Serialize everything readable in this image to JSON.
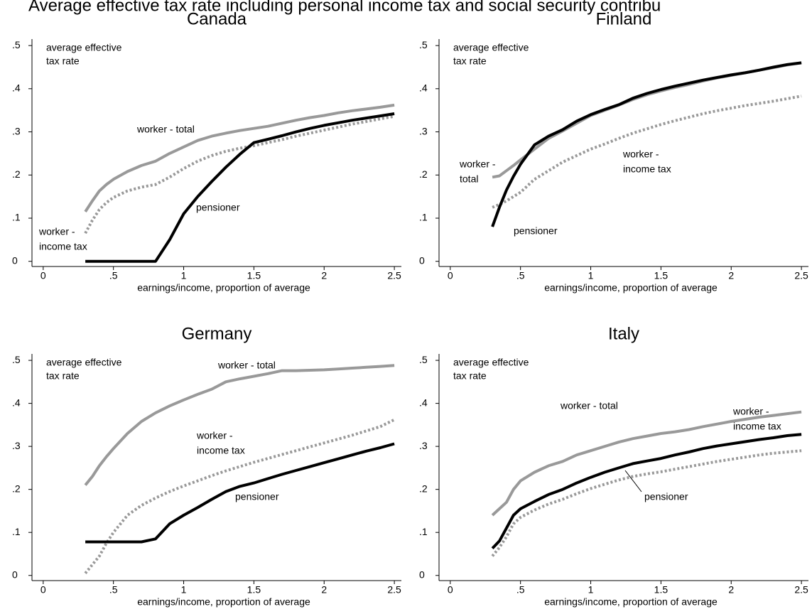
{
  "title": "Average effective tax rate including personal income tax and social security contribu",
  "chart_data": [
    {
      "type": "line",
      "title": "Canada",
      "x_label": "earnings/income, proportion of average",
      "y_label": [
        "average effective",
        "tax rate"
      ],
      "x": [
        0.3,
        0.35,
        0.4,
        0.45,
        0.5,
        0.6,
        0.7,
        0.8,
        0.9,
        1.0,
        1.1,
        1.2,
        1.3,
        1.4,
        1.5,
        1.6,
        1.7,
        1.8,
        1.9,
        2.0,
        2.1,
        2.2,
        2.3,
        2.4,
        2.5
      ],
      "xlim": [
        -0.08,
        2.55
      ],
      "ylim": [
        -0.012,
        0.515
      ],
      "xticks": [
        0,
        {
          "value": 0.5,
          "label": ".5"
        },
        1,
        {
          "value": 1.5,
          "label": "1.5"
        },
        2,
        {
          "value": 2.5,
          "label": "2.5"
        }
      ],
      "yticks": [
        0,
        {
          "value": 0.1,
          "label": ".1"
        },
        {
          "value": 0.2,
          "label": ".2"
        },
        {
          "value": 0.3,
          "label": ".3"
        },
        {
          "value": 0.4,
          "label": ".4"
        },
        {
          "value": 0.5,
          "label": ".5"
        }
      ],
      "series": [
        {
          "name": [
            "worker - total"
          ],
          "color": "#999999",
          "style": "solid",
          "values": [
            0.115,
            0.14,
            0.163,
            0.178,
            0.19,
            0.208,
            0.222,
            0.232,
            0.25,
            0.265,
            0.28,
            0.29,
            0.297,
            0.303,
            0.308,
            0.313,
            0.32,
            0.327,
            0.333,
            0.338,
            0.344,
            0.349,
            0.353,
            0.357,
            0.362
          ]
        },
        {
          "name": [
            "worker -",
            "income tax"
          ],
          "color": "#999999",
          "style": "dotted",
          "values": [
            0.065,
            0.095,
            0.12,
            0.136,
            0.148,
            0.163,
            0.172,
            0.178,
            0.195,
            0.215,
            0.232,
            0.245,
            0.255,
            0.262,
            0.268,
            0.275,
            0.282,
            0.29,
            0.297,
            0.304,
            0.311,
            0.318,
            0.324,
            0.33,
            0.336
          ]
        },
        {
          "name": [
            "pensioner"
          ],
          "color": "#000000",
          "style": "solid",
          "values": [
            0,
            0,
            0,
            0,
            0,
            0,
            0,
            0,
            0.05,
            0.11,
            0.15,
            0.185,
            0.218,
            0.248,
            0.275,
            0.283,
            0.291,
            0.3,
            0.308,
            0.315,
            0.321,
            0.327,
            0.332,
            0.337,
            0.342
          ]
        }
      ]
    },
    {
      "type": "line",
      "title": "Finland",
      "x_label": "earnings/income, proportion of average",
      "y_label": [
        "average effective",
        "tax rate"
      ],
      "x": [
        0.3,
        0.35,
        0.4,
        0.45,
        0.5,
        0.6,
        0.7,
        0.8,
        0.9,
        1.0,
        1.1,
        1.2,
        1.3,
        1.4,
        1.5,
        1.6,
        1.7,
        1.8,
        1.9,
        2.0,
        2.1,
        2.2,
        2.3,
        2.4,
        2.5
      ],
      "xlim": [
        -0.08,
        2.55
      ],
      "ylim": [
        -0.012,
        0.515
      ],
      "xticks": [
        0,
        {
          "value": 0.5,
          "label": ".5"
        },
        1,
        {
          "value": 1.5,
          "label": "1.5"
        },
        2,
        {
          "value": 2.5,
          "label": "2.5"
        }
      ],
      "yticks": [
        0,
        {
          "value": 0.1,
          "label": ".1"
        },
        {
          "value": 0.2,
          "label": ".2"
        },
        {
          "value": 0.3,
          "label": ".3"
        },
        {
          "value": 0.4,
          "label": ".4"
        },
        {
          "value": 0.5,
          "label": ".5"
        }
      ],
      "series": [
        {
          "name": [
            "worker -",
            "total"
          ],
          "color": "#999999",
          "style": "solid",
          "values": [
            0.195,
            0.198,
            0.21,
            0.222,
            0.235,
            0.26,
            0.285,
            0.302,
            0.32,
            0.338,
            0.35,
            0.362,
            0.375,
            0.386,
            0.395,
            0.403,
            0.41,
            0.418,
            0.425,
            0.431,
            0.437,
            0.443,
            0.449,
            0.455,
            0.46
          ]
        },
        {
          "name": [
            "worker -",
            "income tax"
          ],
          "color": "#999999",
          "style": "dotted",
          "values": [
            0.125,
            0.132,
            0.14,
            0.15,
            0.16,
            0.19,
            0.21,
            0.23,
            0.245,
            0.26,
            0.272,
            0.285,
            0.297,
            0.307,
            0.317,
            0.326,
            0.334,
            0.342,
            0.349,
            0.355,
            0.361,
            0.366,
            0.371,
            0.377,
            0.383
          ]
        },
        {
          "name": [
            "pensioner"
          ],
          "color": "#000000",
          "style": "solid",
          "values": [
            0.08,
            0.125,
            0.165,
            0.197,
            0.225,
            0.27,
            0.29,
            0.305,
            0.325,
            0.34,
            0.352,
            0.363,
            0.378,
            0.389,
            0.398,
            0.406,
            0.413,
            0.42,
            0.426,
            0.432,
            0.437,
            0.443,
            0.45,
            0.456,
            0.46
          ]
        }
      ]
    },
    {
      "type": "line",
      "title": "Germany",
      "x_label": "earnings/income, proportion of average",
      "y_label": [
        "average effective",
        "tax rate"
      ],
      "x": [
        0.3,
        0.35,
        0.4,
        0.45,
        0.5,
        0.6,
        0.7,
        0.8,
        0.9,
        1.0,
        1.1,
        1.2,
        1.3,
        1.4,
        1.5,
        1.6,
        1.7,
        1.8,
        1.9,
        2.0,
        2.1,
        2.2,
        2.3,
        2.4,
        2.5
      ],
      "xlim": [
        -0.08,
        2.55
      ],
      "ylim": [
        -0.012,
        0.515
      ],
      "xticks": [
        0,
        {
          "value": 0.5,
          "label": ".5"
        },
        1,
        {
          "value": 1.5,
          "label": "1.5"
        },
        2,
        {
          "value": 2.5,
          "label": "2.5"
        }
      ],
      "yticks": [
        0,
        {
          "value": 0.1,
          "label": ".1"
        },
        {
          "value": 0.2,
          "label": ".2"
        },
        {
          "value": 0.3,
          "label": ".3"
        },
        {
          "value": 0.4,
          "label": ".4"
        },
        {
          "value": 0.5,
          "label": ".5"
        }
      ],
      "series": [
        {
          "name": [
            "worker - total"
          ],
          "color": "#999999",
          "style": "solid",
          "values": [
            0.21,
            0.23,
            0.255,
            0.276,
            0.295,
            0.33,
            0.358,
            0.378,
            0.394,
            0.408,
            0.421,
            0.433,
            0.45,
            0.457,
            0.463,
            0.469,
            0.476,
            0.476,
            0.477,
            0.478,
            0.48,
            0.482,
            0.484,
            0.486,
            0.488
          ]
        },
        {
          "name": [
            "worker -",
            "income tax"
          ],
          "color": "#999999",
          "style": "dotted",
          "values": [
            0.005,
            0.025,
            0.045,
            0.075,
            0.1,
            0.14,
            0.163,
            0.18,
            0.195,
            0.208,
            0.22,
            0.232,
            0.243,
            0.253,
            0.263,
            0.272,
            0.281,
            0.29,
            0.299,
            0.308,
            0.317,
            0.326,
            0.336,
            0.346,
            0.362
          ]
        },
        {
          "name": [
            "pensioner"
          ],
          "color": "#000000",
          "style": "solid",
          "values": [
            0.078,
            0.078,
            0.078,
            0.078,
            0.078,
            0.078,
            0.078,
            0.085,
            0.12,
            0.14,
            0.158,
            0.177,
            0.195,
            0.207,
            0.215,
            0.225,
            0.235,
            0.244,
            0.253,
            0.262,
            0.271,
            0.28,
            0.289,
            0.297,
            0.306
          ]
        }
      ]
    },
    {
      "type": "line",
      "title": "Italy",
      "x_label": "earnings/income, proportion of average",
      "y_label": [
        "average effective",
        "tax rate"
      ],
      "x": [
        0.3,
        0.35,
        0.4,
        0.45,
        0.5,
        0.6,
        0.7,
        0.8,
        0.9,
        1.0,
        1.1,
        1.2,
        1.3,
        1.4,
        1.5,
        1.6,
        1.7,
        1.8,
        1.9,
        2.0,
        2.1,
        2.2,
        2.3,
        2.4,
        2.5
      ],
      "xlim": [
        -0.08,
        2.55
      ],
      "ylim": [
        -0.012,
        0.515
      ],
      "xticks": [
        0,
        {
          "value": 0.5,
          "label": ".5"
        },
        1,
        {
          "value": 1.5,
          "label": "1.5"
        },
        2,
        {
          "value": 2.5,
          "label": "2.5"
        }
      ],
      "yticks": [
        0,
        {
          "value": 0.1,
          "label": ".1"
        },
        {
          "value": 0.2,
          "label": ".2"
        },
        {
          "value": 0.3,
          "label": ".3"
        },
        {
          "value": 0.4,
          "label": ".4"
        },
        {
          "value": 0.5,
          "label": ".5"
        }
      ],
      "series": [
        {
          "name": [
            "worker - total"
          ],
          "color": "#999999",
          "style": "solid",
          "values": [
            0.14,
            0.155,
            0.17,
            0.2,
            0.22,
            0.24,
            0.255,
            0.265,
            0.28,
            0.29,
            0.3,
            0.31,
            0.318,
            0.324,
            0.33,
            0.334,
            0.339,
            0.346,
            0.352,
            0.358,
            0.363,
            0.368,
            0.372,
            0.376,
            0.38
          ]
        },
        {
          "name": [
            "worker -",
            "income tax"
          ],
          "color": "#999999",
          "style": "dotted",
          "values": [
            0.045,
            0.065,
            0.09,
            0.12,
            0.135,
            0.152,
            0.166,
            0.177,
            0.19,
            0.202,
            0.212,
            0.222,
            0.23,
            0.236,
            0.241,
            0.247,
            0.253,
            0.259,
            0.265,
            0.27,
            0.275,
            0.28,
            0.284,
            0.287,
            0.29
          ]
        },
        {
          "name": [
            "pensioner"
          ],
          "color": "#000000",
          "style": "solid",
          "values": [
            0.063,
            0.08,
            0.11,
            0.14,
            0.155,
            0.172,
            0.188,
            0.2,
            0.215,
            0.228,
            0.24,
            0.25,
            0.26,
            0.266,
            0.272,
            0.28,
            0.287,
            0.295,
            0.301,
            0.306,
            0.311,
            0.316,
            0.32,
            0.325,
            0.328
          ]
        }
      ]
    }
  ]
}
